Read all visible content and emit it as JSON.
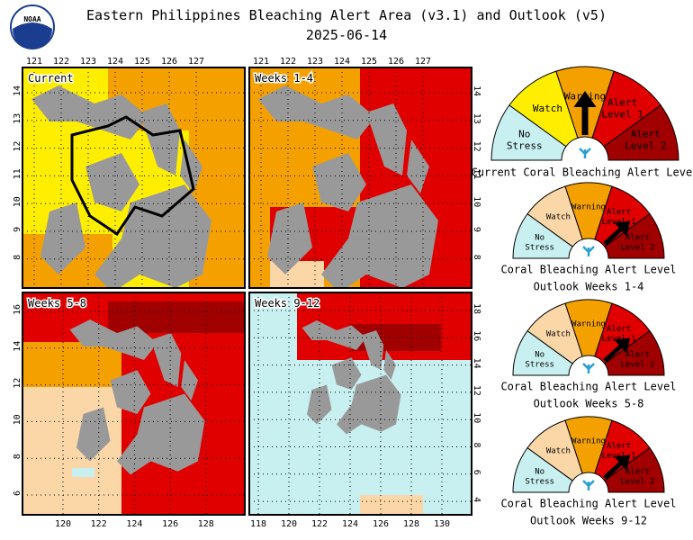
{
  "header": {
    "logo_text": "NOAA",
    "title": "Eastern Philippines Bleaching Alert Area (v3.1) and Outlook (v5)",
    "date": "2025-06-14"
  },
  "maps": [
    {
      "label": "Current",
      "xticks": [
        121,
        122,
        123,
        124,
        125,
        126,
        127
      ],
      "yticks": [
        14,
        13,
        12,
        11,
        10,
        9,
        8
      ]
    },
    {
      "label": "Weeks 1-4",
      "xticks": [
        121,
        122,
        123,
        124,
        125,
        126,
        127
      ],
      "yticks": [
        14,
        13,
        12,
        11,
        10,
        9,
        8
      ]
    },
    {
      "label": "Weeks 5-8",
      "xticks": [
        120,
        122,
        124,
        126,
        128
      ],
      "yticks": [
        16,
        14,
        12,
        10,
        8,
        6
      ]
    },
    {
      "label": "Weeks 9-12",
      "xticks": [
        118,
        120,
        122,
        124,
        126,
        128,
        130
      ],
      "yticks": [
        18,
        16,
        14,
        12,
        10,
        8,
        6,
        4
      ]
    }
  ],
  "alert_levels": [
    [
      "No",
      "Stress"
    ],
    [
      "Watch"
    ],
    [
      "Warning"
    ],
    [
      "Alert",
      "Level 1"
    ],
    [
      "Alert",
      "Level 2"
    ]
  ],
  "gauges": [
    {
      "caption": [
        "Current Coral Bleaching Alert Level"
      ]
    },
    {
      "caption": [
        "Coral Bleaching Alert Level",
        "Outlook Weeks 1-4"
      ]
    },
    {
      "caption": [
        "Coral Bleaching Alert Level",
        "Outlook Weeks 5-8"
      ]
    },
    {
      "caption": [
        "Coral Bleaching Alert Level",
        "Outlook Weeks 9-12"
      ]
    }
  ]
}
